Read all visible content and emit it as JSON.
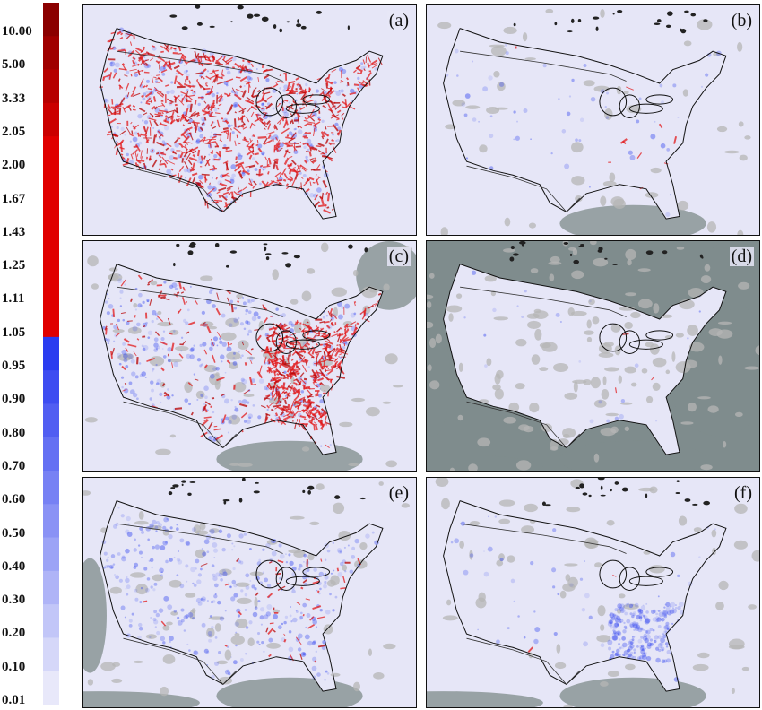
{
  "colorbar": {
    "labels": [
      "10.00",
      "5.00",
      "3.33",
      "2.05",
      "2.00",
      "1.67",
      "1.43",
      "1.25",
      "1.11",
      "1.05",
      "0.95",
      "0.90",
      "0.80",
      "0.70",
      "0.60",
      "0.50",
      "0.40",
      "0.30",
      "0.20",
      "0.10",
      "0.01"
    ],
    "upper_color": "#e00000",
    "top_color": "#8b0000",
    "lower_color": "#2b3cf0",
    "bottom_color": "#e8e8fa"
  },
  "panels": [
    {
      "label": "(a)",
      "style": "heavy-red"
    },
    {
      "label": "(b)",
      "style": "light"
    },
    {
      "label": "(c)",
      "style": "medium-red"
    },
    {
      "label": "(d)",
      "style": "light-gray"
    },
    {
      "label": "(e)",
      "style": "light-blue"
    },
    {
      "label": "(f)",
      "style": "very-light"
    }
  ],
  "colors": {
    "background": "#e6e6f7",
    "ocean_gray": "#7f8c8d",
    "land_gray": "#b9b9b9",
    "red": "#e31a1c",
    "blue": "#3a4cf0",
    "coast": "#111111"
  }
}
